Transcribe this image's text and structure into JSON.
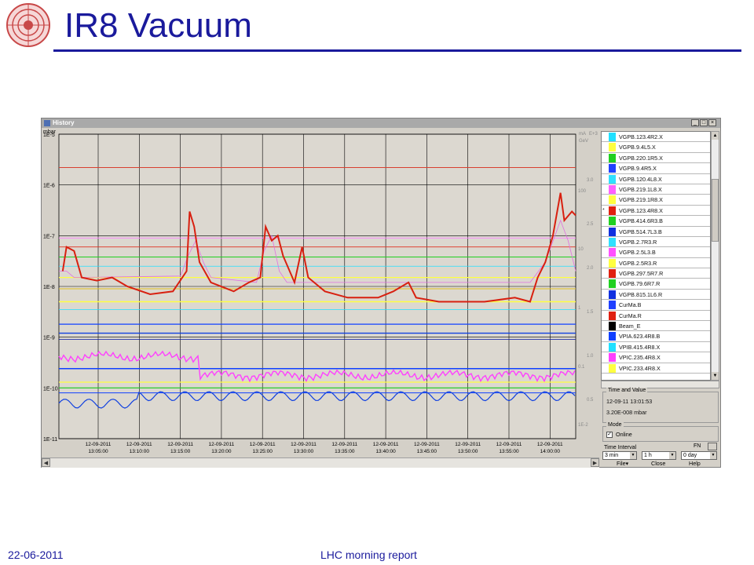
{
  "slide": {
    "title": "IR8 Vacuum",
    "date": "22-06-2011",
    "footer": "LHC morning report",
    "accent_color": "#1a1a9c"
  },
  "window": {
    "title": "History",
    "controls": [
      "_",
      "□",
      "×"
    ]
  },
  "plot": {
    "left_unit": "mbar",
    "left_ticks": [
      "1E-5",
      "1E-6",
      "1E-7",
      "1E-8",
      "1E-9",
      "1E-10",
      "1E-11"
    ],
    "right_unit_1": "mA",
    "right_unit_2": "E+3",
    "right_unit_3": "GeV",
    "right_ticks_a": [
      "100",
      "10",
      "1",
      "0.1",
      "1E-2"
    ],
    "right_ticks_b": [
      "3.0",
      "2.5",
      "2.0",
      "1.5",
      "1.0",
      "0.5"
    ],
    "x_dates": [
      "12-09-2011",
      "12-09-2011",
      "12-09-2011",
      "12-09-2011",
      "12-09-2011",
      "12-09-2011",
      "12-09-2011",
      "12-09-2011",
      "12-09-2011",
      "12-09-2011",
      "12-09-2011",
      "12-09-2011"
    ],
    "x_times": [
      "13:05:00",
      "13:10:00",
      "13:15:00",
      "13:20:00",
      "13:25:00",
      "13:30:00",
      "13:35:00",
      "13:40:00",
      "13:45:00",
      "13:50:00",
      "13:55:00",
      "14:00:00"
    ]
  },
  "chart_data": {
    "type": "line",
    "x_range": [
      "12-09-2011 13:02",
      "12-09-2011 14:04"
    ],
    "ylim": [
      1e-11,
      1e-05
    ],
    "log_y": true,
    "grid": true,
    "series": [
      {
        "name": "VGPB.123.4R8.X",
        "color": "#d82010",
        "values_description": "main pressure trace with peaks ~3E-7 at 13:15, ~1.5E-7 at 13:25, ~8E-7 at 14:03"
      },
      {
        "name": "VGPB.220.1R5.X",
        "color": "#20c020"
      },
      {
        "name": "VPIA.623.4R8.B",
        "color": "#1040e0"
      },
      {
        "name": "VPIC.235.4R8.X",
        "color": "#ff40ff"
      }
    ]
  },
  "signals": [
    {
      "label": "VGPB.123.4R2.X",
      "color": "#20e0ff",
      "sel": ""
    },
    {
      "label": "VGPB.9.4L5.X",
      "color": "#ffff40",
      "sel": ""
    },
    {
      "label": "VGPB.220.1R5.X",
      "color": "#20d020",
      "sel": ""
    },
    {
      "label": "VGPB.9.4R5.X",
      "color": "#2040ff",
      "sel": ""
    },
    {
      "label": "VGPB.120.4L8.X",
      "color": "#30e0ff",
      "sel": ""
    },
    {
      "label": "VGPB.219.1L8.X",
      "color": "#ff60ff",
      "sel": ""
    },
    {
      "label": "VGPB.219.1R8.X",
      "color": "#ffff40",
      "sel": ""
    },
    {
      "label": "VGPB.123.4R8.X",
      "color": "#e02010",
      "sel": "*"
    },
    {
      "label": "VGPB.414.6R3.B",
      "color": "#20d020",
      "sel": ""
    },
    {
      "label": "VGPB.514.7L3.B",
      "color": "#1030e0",
      "sel": ""
    },
    {
      "label": "VGPB.2.7R3.R",
      "color": "#30e0ff",
      "sel": ""
    },
    {
      "label": "VGPB.2.5L3.B",
      "color": "#ff50ff",
      "sel": ""
    },
    {
      "label": "VGPB.2.5R3.R",
      "color": "#ffff40",
      "sel": ""
    },
    {
      "label": "VGPB.297.5R7.R",
      "color": "#e02010",
      "sel": ""
    },
    {
      "label": "VGPB.79.6R7.R",
      "color": "#20d020",
      "sel": ""
    },
    {
      "label": "VGPB.815.1L6.R",
      "color": "#1030e0",
      "sel": ""
    },
    {
      "label": "CurMa.B",
      "color": "#2040ff",
      "sel": ""
    },
    {
      "label": "CurMa.R",
      "color": "#e02010",
      "sel": ""
    },
    {
      "label": "Beam_E",
      "color": "#000000",
      "sel": ""
    },
    {
      "label": "VPIA.623.4R8.B",
      "color": "#1040ff",
      "sel": ""
    },
    {
      "label": "VPIB.415.4R8.X",
      "color": "#20e0ff",
      "sel": ""
    },
    {
      "label": "VPIC.235.4R8.X",
      "color": "#ff40ff",
      "sel": ""
    },
    {
      "label": "VPIC.233.4R8.X",
      "color": "#ffff40",
      "sel": ""
    }
  ],
  "time_value": {
    "legend": "Time and Value",
    "time": "12-09-11 13:01:53",
    "value": "3.20E-008 mbar"
  },
  "mode": {
    "legend": "Mode",
    "online_label": "Online",
    "online_checked": "✓"
  },
  "time_interval": {
    "label": "Time Interval",
    "fn": "FN",
    "min": "3 min",
    "hour": "1 h",
    "day": "0 day"
  },
  "menu": {
    "file": "File▾",
    "close": "Close",
    "help": "Help"
  }
}
